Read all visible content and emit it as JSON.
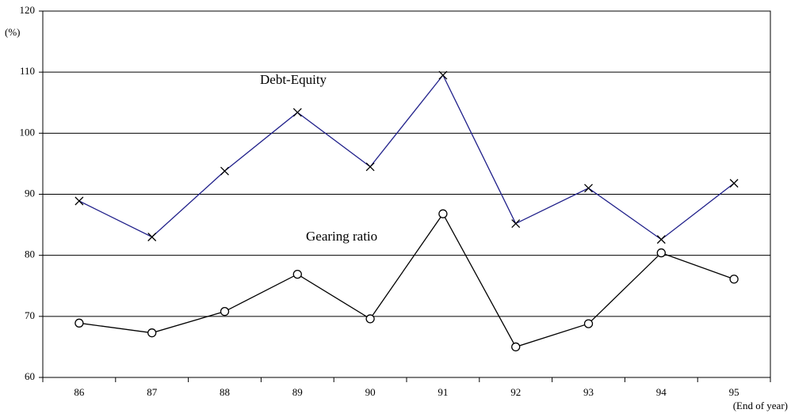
{
  "chart_data": {
    "type": "line",
    "y_axis_label": "(%)",
    "x_axis_label": "(End of year)",
    "categories": [
      "86",
      "87",
      "88",
      "89",
      "90",
      "91",
      "92",
      "93",
      "94",
      "95"
    ],
    "series": [
      {
        "name": "Debt-Equity",
        "color": "#1f1f8a",
        "marker": "x",
        "values": [
          88.9,
          83,
          93.8,
          103.4,
          94.5,
          109.5,
          85.2,
          91,
          82.6,
          91.8
        ]
      },
      {
        "name": "Gearing ratio",
        "color": "#000000",
        "marker": "o",
        "values": [
          68.9,
          67.3,
          70.8,
          76.9,
          69.6,
          86.8,
          65,
          68.8,
          80.4,
          76.1
        ]
      }
    ],
    "ylim": [
      60,
      120
    ],
    "yticks": [
      60,
      70,
      80,
      90,
      100,
      110,
      120
    ],
    "grid": true
  }
}
